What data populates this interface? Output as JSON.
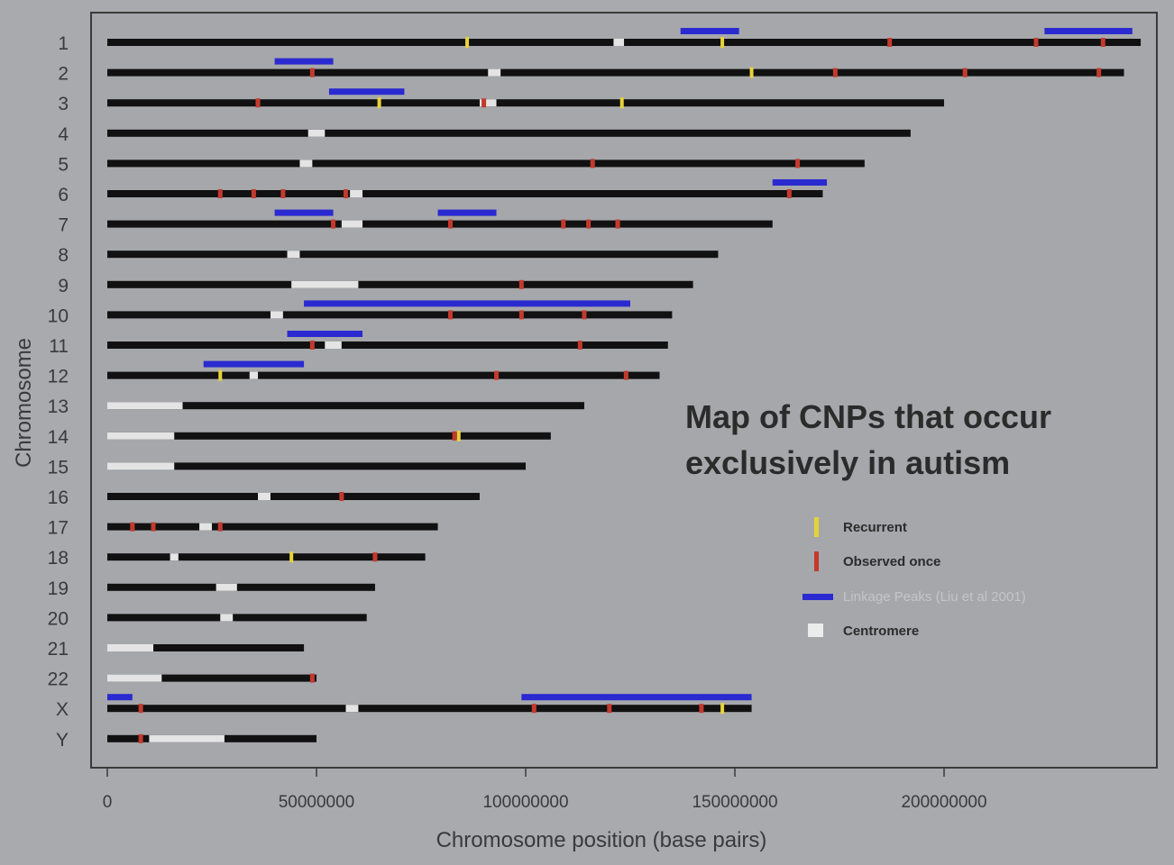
{
  "chart_data": {
    "type": "chromosome-map",
    "title": "Map of CNPs that occur exclusively in autism",
    "xlabel": "Chromosome position (base pairs)",
    "ylabel": "Chromosome",
    "xlim": [
      0,
      250000000
    ],
    "x_ticks": [
      0,
      50000000,
      100000000,
      150000000,
      200000000
    ],
    "x_tick_labels": [
      "0",
      "50000000",
      "100000000",
      "150000000",
      "200000000"
    ],
    "grid": false,
    "legend_position": "right",
    "legend": {
      "recurrent": "Recurrent",
      "observed_once": "Observed once",
      "linkage": "Linkage Peaks (Liu et al 2001)",
      "centromere": "Centromere"
    },
    "colors": {
      "chromosome": "#111111",
      "centromere": "#e4e4e4",
      "recurrent": "#e6d23a",
      "observed_once": "#c23a2e",
      "linkage": "#2a2ad0",
      "frame": "#3a3a3a",
      "plot_bg": "#a6a7ab"
    },
    "chromosomes": [
      {
        "name": "1",
        "length": 247000000,
        "centromere": [
          121000000,
          123500000
        ],
        "linkage": [
          [
            137000000,
            151000000
          ],
          [
            224000000,
            245000000
          ]
        ],
        "recurrent": [
          86000000,
          147000000
        ],
        "once": [
          187000000,
          222000000,
          238000000
        ]
      },
      {
        "name": "2",
        "length": 243000000,
        "centromere": [
          91000000,
          94000000
        ],
        "linkage": [
          [
            40000000,
            54000000
          ]
        ],
        "recurrent": [
          154000000
        ],
        "once": [
          49000000,
          174000000,
          205000000,
          237000000
        ]
      },
      {
        "name": "3",
        "length": 200000000,
        "centromere": [
          89000000,
          93000000
        ],
        "linkage": [
          [
            53000000,
            71000000
          ]
        ],
        "recurrent": [
          65000000,
          123000000
        ],
        "once": [
          36000000,
          90000000
        ]
      },
      {
        "name": "4",
        "length": 192000000,
        "centromere": [
          48000000,
          52000000
        ],
        "linkage": [],
        "recurrent": [],
        "once": []
      },
      {
        "name": "5",
        "length": 181000000,
        "centromere": [
          46000000,
          49000000
        ],
        "linkage": [],
        "recurrent": [],
        "once": [
          116000000,
          165000000
        ]
      },
      {
        "name": "6",
        "length": 171000000,
        "centromere": [
          58000000,
          61000000
        ],
        "linkage": [
          [
            159000000,
            172000000
          ]
        ],
        "recurrent": [],
        "once": [
          27000000,
          35000000,
          42000000,
          57000000,
          163000000
        ]
      },
      {
        "name": "7",
        "length": 159000000,
        "centromere": [
          56000000,
          61000000
        ],
        "linkage": [
          [
            40000000,
            54000000
          ],
          [
            79000000,
            93000000
          ]
        ],
        "recurrent": [],
        "once": [
          54000000,
          82000000,
          109000000,
          115000000,
          122000000
        ]
      },
      {
        "name": "8",
        "length": 146000000,
        "centromere": [
          43000000,
          46000000
        ],
        "linkage": [],
        "recurrent": [],
        "once": []
      },
      {
        "name": "9",
        "length": 140000000,
        "centromere": [
          44000000,
          60000000
        ],
        "linkage": [],
        "recurrent": [],
        "once": [
          99000000
        ]
      },
      {
        "name": "10",
        "length": 135000000,
        "centromere": [
          39000000,
          42000000
        ],
        "linkage": [
          [
            47000000,
            125000000
          ]
        ],
        "recurrent": [],
        "once": [
          82000000,
          99000000,
          114000000
        ]
      },
      {
        "name": "11",
        "length": 134000000,
        "centromere": [
          52000000,
          56000000
        ],
        "linkage": [
          [
            43000000,
            61000000
          ]
        ],
        "recurrent": [],
        "once": [
          49000000,
          113000000
        ]
      },
      {
        "name": "12",
        "length": 132000000,
        "centromere": [
          34000000,
          36000000
        ],
        "linkage": [
          [
            23000000,
            47000000
          ]
        ],
        "recurrent": [
          27000000
        ],
        "once": [
          93000000,
          124000000
        ]
      },
      {
        "name": "13",
        "length": 114000000,
        "centromere": [
          0,
          18000000
        ],
        "linkage": [],
        "recurrent": [],
        "once": []
      },
      {
        "name": "14",
        "length": 106000000,
        "centromere": [
          0,
          16000000
        ],
        "linkage": [],
        "recurrent": [
          84000000
        ],
        "once": [
          83000000
        ]
      },
      {
        "name": "15",
        "length": 100000000,
        "centromere": [
          0,
          16000000
        ],
        "linkage": [],
        "recurrent": [],
        "once": []
      },
      {
        "name": "16",
        "length": 89000000,
        "centromere": [
          36000000,
          39000000
        ],
        "linkage": [],
        "recurrent": [],
        "once": [
          56000000
        ]
      },
      {
        "name": "17",
        "length": 79000000,
        "centromere": [
          22000000,
          25000000
        ],
        "linkage": [],
        "recurrent": [],
        "once": [
          6000000,
          11000000,
          27000000
        ]
      },
      {
        "name": "18",
        "length": 76000000,
        "centromere": [
          15000000,
          17000000
        ],
        "linkage": [],
        "recurrent": [
          44000000
        ],
        "once": [
          64000000
        ]
      },
      {
        "name": "19",
        "length": 64000000,
        "centromere": [
          26000000,
          31000000
        ],
        "linkage": [],
        "recurrent": [],
        "once": []
      },
      {
        "name": "20",
        "length": 62000000,
        "centromere": [
          27000000,
          30000000
        ],
        "linkage": [],
        "recurrent": [],
        "once": []
      },
      {
        "name": "21",
        "length": 47000000,
        "centromere": [
          0,
          11000000
        ],
        "linkage": [],
        "recurrent": [],
        "once": []
      },
      {
        "name": "22",
        "length": 50000000,
        "centromere": [
          0,
          13000000
        ],
        "linkage": [],
        "recurrent": [],
        "once": [
          49000000
        ]
      },
      {
        "name": "X",
        "length": 154000000,
        "centromere": [
          57000000,
          60000000
        ],
        "linkage": [
          [
            0,
            6000000
          ],
          [
            99000000,
            154000000
          ]
        ],
        "recurrent": [
          147000000
        ],
        "once": [
          8000000,
          102000000,
          120000000,
          142000000
        ]
      },
      {
        "name": "Y",
        "length": 50000000,
        "centromere": [
          10000000,
          28000000
        ],
        "linkage": [],
        "recurrent": [],
        "once": [
          8000000
        ]
      }
    ]
  }
}
